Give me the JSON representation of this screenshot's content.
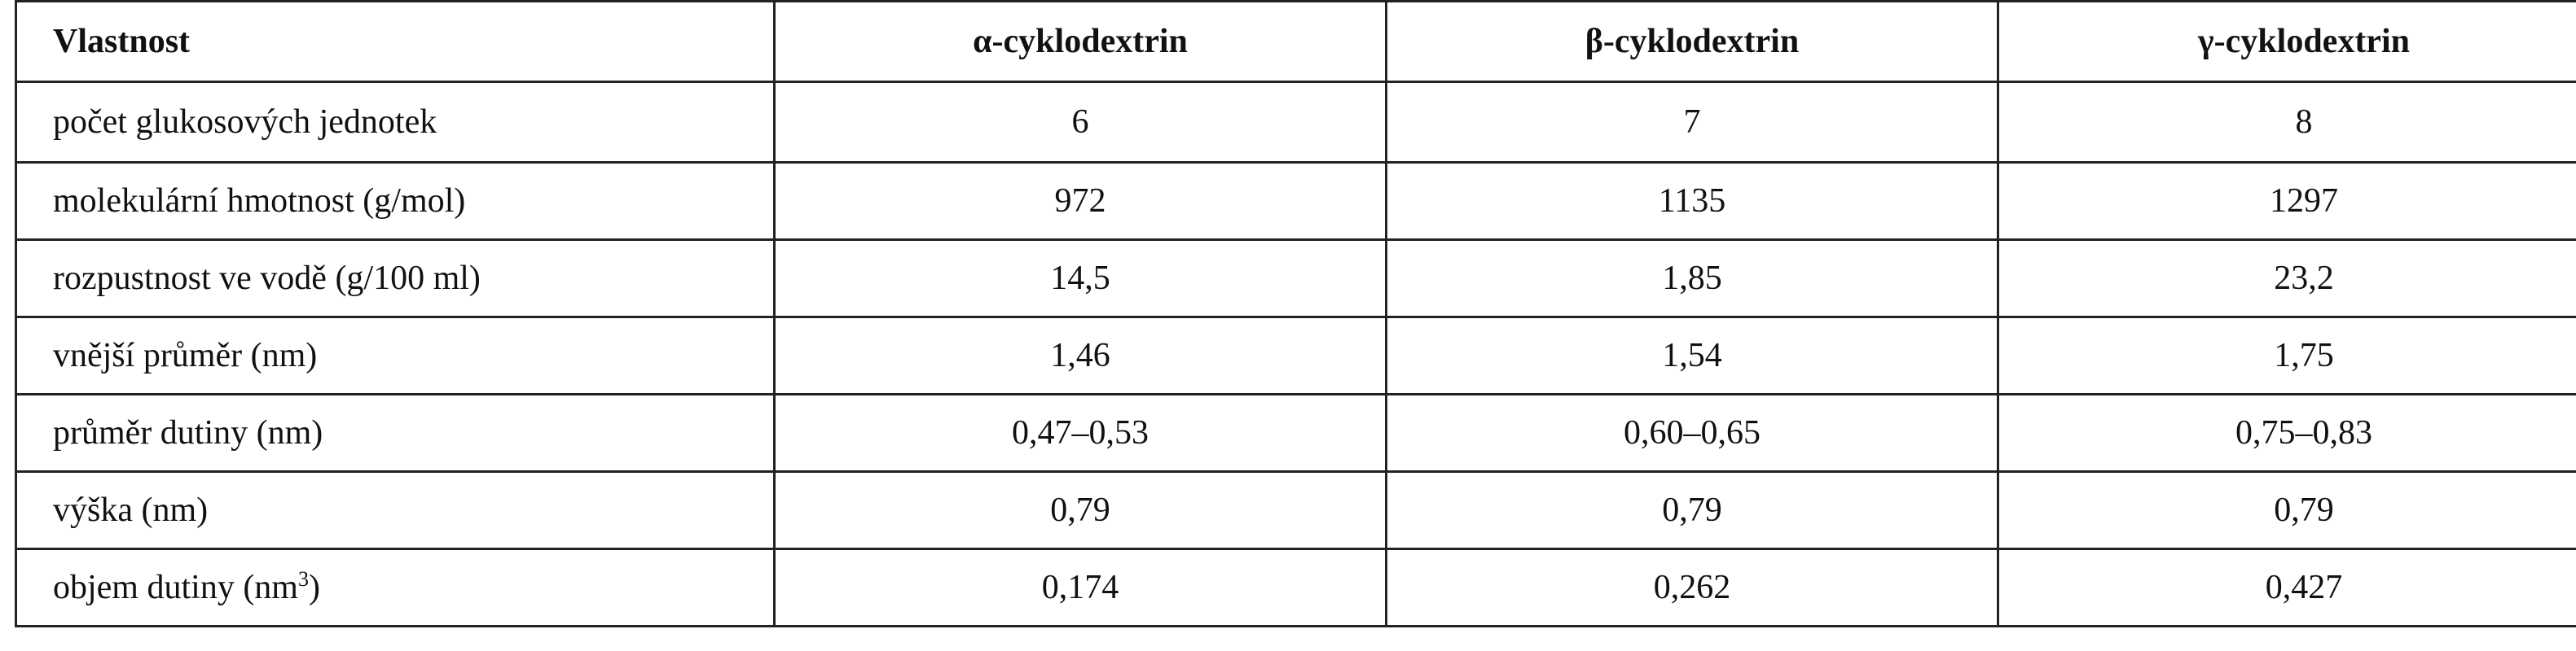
{
  "table": {
    "headers": [
      "Vlastnost",
      "α-cyklodextrin",
      "β-cyklodextrin",
      "γ-cyklodextrin"
    ],
    "rows": [
      {
        "label": "počet glukosových jednotek",
        "label_suffix": "",
        "alpha": "6",
        "beta": "7",
        "gamma": "8"
      },
      {
        "label": "molekulární hmotnost (g/mol)",
        "label_suffix": "",
        "alpha": "972",
        "beta": "1135",
        "gamma": "1297"
      },
      {
        "label": "rozpustnost ve vodě (g/100 ml)",
        "label_suffix": "",
        "alpha": "14,5",
        "beta": "1,85",
        "gamma": "23,2"
      },
      {
        "label": "vnější průměr (nm)",
        "label_suffix": "",
        "alpha": "1,46",
        "beta": "1,54",
        "gamma": "1,75"
      },
      {
        "label": "průměr dutiny (nm)",
        "label_suffix": "",
        "alpha": "0,47–0,53",
        "beta": "0,60–0,65",
        "gamma": "0,75–0,83"
      },
      {
        "label": "výška (nm)",
        "label_suffix": "",
        "alpha": "0,79",
        "beta": "0,79",
        "gamma": "0,79"
      },
      {
        "label": "objem dutiny (nm",
        "label_sup": "3",
        "label_suffix": ")",
        "alpha": "0,174",
        "beta": "0,262",
        "gamma": "0,427"
      }
    ]
  }
}
